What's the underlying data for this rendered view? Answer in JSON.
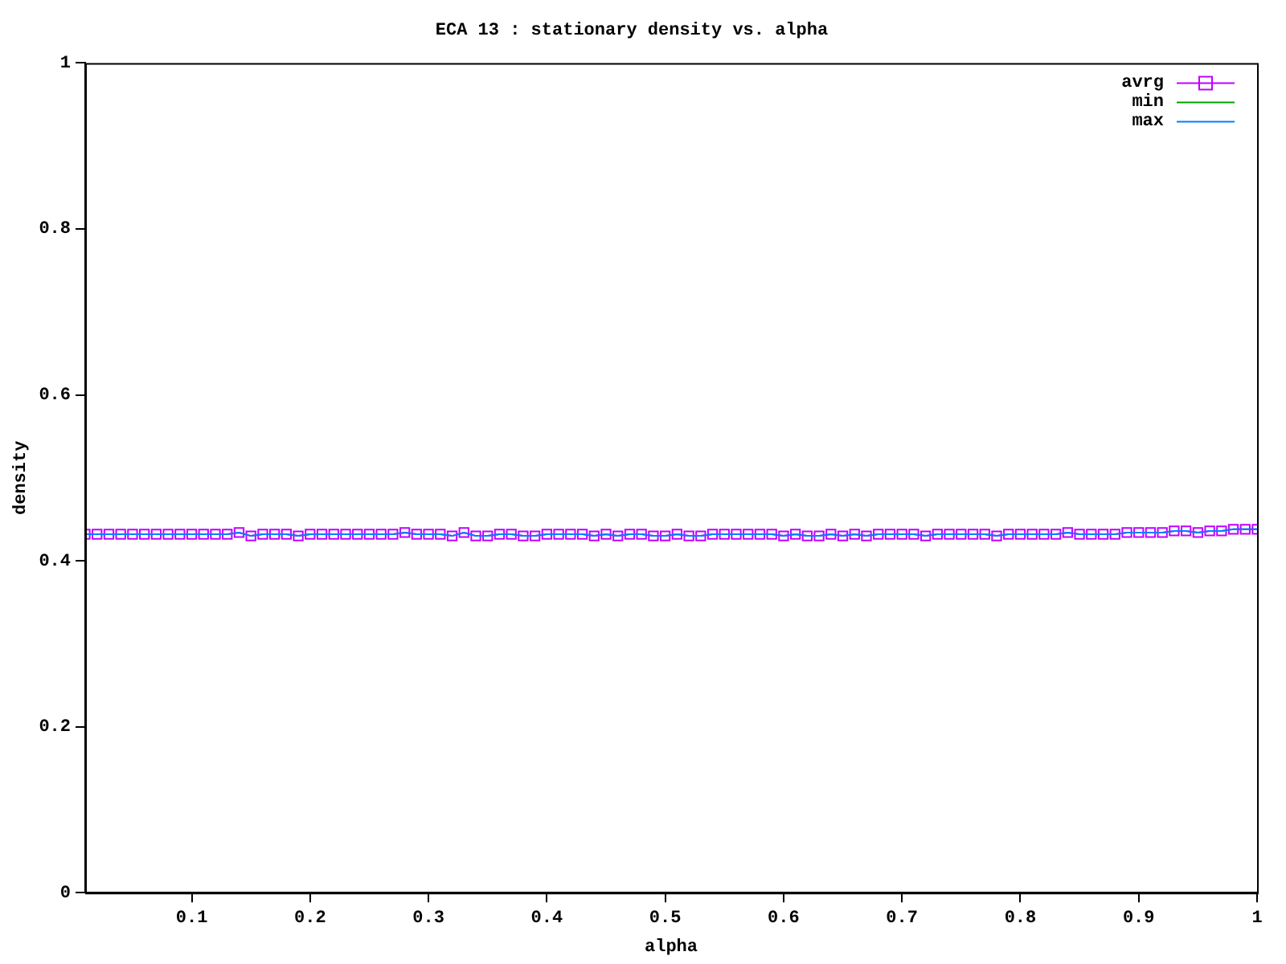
{
  "chart_data": {
    "type": "line",
    "title": "ECA 13 : stationary density vs. alpha",
    "xlabel": "alpha",
    "ylabel": "density",
    "x": [
      0.01,
      0.02,
      0.03,
      0.04,
      0.05,
      0.06,
      0.07,
      0.08,
      0.09,
      0.1,
      0.11,
      0.12,
      0.13,
      0.14,
      0.15,
      0.16,
      0.17,
      0.18,
      0.19,
      0.2,
      0.21,
      0.22,
      0.23,
      0.24,
      0.25,
      0.26,
      0.27,
      0.28,
      0.29,
      0.3,
      0.31,
      0.32,
      0.33,
      0.34,
      0.35,
      0.36,
      0.37,
      0.38,
      0.39,
      0.4,
      0.41,
      0.42,
      0.43,
      0.44,
      0.45,
      0.46,
      0.47,
      0.48,
      0.49,
      0.5,
      0.51,
      0.52,
      0.53,
      0.54,
      0.55,
      0.56,
      0.57,
      0.58,
      0.59,
      0.6,
      0.61,
      0.62,
      0.63,
      0.64,
      0.65,
      0.66,
      0.67,
      0.68,
      0.69,
      0.7,
      0.71,
      0.72,
      0.73,
      0.74,
      0.75,
      0.76,
      0.77,
      0.78,
      0.79,
      0.8,
      0.81,
      0.82,
      0.83,
      0.84,
      0.85,
      0.86,
      0.87,
      0.88,
      0.89,
      0.9,
      0.91,
      0.92,
      0.93,
      0.94,
      0.95,
      0.96,
      0.97,
      0.98,
      0.99,
      1
    ],
    "series": [
      {
        "name": "avrg",
        "color": "#c000ff",
        "marker": "square",
        "values": [
          0.432,
          0.432,
          0.432,
          0.432,
          0.432,
          0.432,
          0.432,
          0.432,
          0.432,
          0.432,
          0.432,
          0.432,
          0.432,
          0.434,
          0.43,
          0.432,
          0.432,
          0.432,
          0.43,
          0.432,
          0.432,
          0.432,
          0.432,
          0.432,
          0.432,
          0.432,
          0.432,
          0.434,
          0.432,
          0.432,
          0.432,
          0.43,
          0.434,
          0.43,
          0.43,
          0.432,
          0.432,
          0.43,
          0.43,
          0.432,
          0.432,
          0.432,
          0.432,
          0.43,
          0.432,
          0.43,
          0.432,
          0.432,
          0.43,
          0.43,
          0.432,
          0.43,
          0.43,
          0.432,
          0.432,
          0.432,
          0.432,
          0.432,
          0.432,
          0.43,
          0.432,
          0.43,
          0.43,
          0.432,
          0.43,
          0.432,
          0.43,
          0.432,
          0.432,
          0.432,
          0.432,
          0.43,
          0.432,
          0.432,
          0.432,
          0.432,
          0.432,
          0.43,
          0.432,
          0.432,
          0.432,
          0.432,
          0.432,
          0.434,
          0.432,
          0.432,
          0.432,
          0.432,
          0.434,
          0.434,
          0.434,
          0.434,
          0.436,
          0.436,
          0.434,
          0.436,
          0.436,
          0.438,
          0.438,
          0.438
        ]
      },
      {
        "name": "min",
        "color": "#00a000",
        "marker": "none",
        "values": [
          null,
          null,
          null,
          null,
          null,
          null,
          null,
          null,
          null,
          null,
          null,
          null,
          null,
          null,
          null,
          null,
          null,
          null,
          null,
          null,
          null,
          null,
          null,
          null,
          null,
          null,
          null,
          null,
          null,
          null,
          null,
          null,
          null,
          null,
          null,
          null,
          null,
          null,
          null,
          null,
          null,
          null,
          null,
          null,
          null,
          null,
          null,
          null,
          null,
          null,
          null,
          null,
          null,
          null,
          null,
          null,
          null,
          null,
          null,
          null,
          null,
          null,
          null,
          null,
          null,
          null,
          null,
          null,
          null,
          null,
          null,
          null,
          null,
          null,
          null,
          null,
          null,
          null,
          null,
          null,
          null,
          null,
          null,
          null,
          null,
          null,
          null,
          null,
          null,
          null,
          null,
          null,
          null,
          null,
          null,
          null,
          null,
          null,
          null,
          null
        ]
      },
      {
        "name": "max",
        "color": "#0080ff",
        "marker": "none",
        "values": [
          0.432,
          0.432,
          0.432,
          0.432,
          0.432,
          0.432,
          0.432,
          0.432,
          0.432,
          0.432,
          0.432,
          0.432,
          0.432,
          0.434,
          0.43,
          0.432,
          0.432,
          0.432,
          0.43,
          0.432,
          0.432,
          0.432,
          0.432,
          0.432,
          0.432,
          0.432,
          0.432,
          0.434,
          0.432,
          0.432,
          0.432,
          0.43,
          0.434,
          0.43,
          0.43,
          0.432,
          0.432,
          0.43,
          0.43,
          0.432,
          0.432,
          0.432,
          0.432,
          0.43,
          0.432,
          0.43,
          0.432,
          0.432,
          0.43,
          0.43,
          0.432,
          0.43,
          0.43,
          0.432,
          0.432,
          0.432,
          0.432,
          0.432,
          0.432,
          0.43,
          0.432,
          0.43,
          0.43,
          0.432,
          0.43,
          0.432,
          0.43,
          0.432,
          0.432,
          0.432,
          0.432,
          0.43,
          0.432,
          0.432,
          0.432,
          0.432,
          0.432,
          0.43,
          0.432,
          0.432,
          0.432,
          0.432,
          0.432,
          0.434,
          0.432,
          0.432,
          0.432,
          0.432,
          0.434,
          0.434,
          0.434,
          0.434,
          0.436,
          0.436,
          0.434,
          0.436,
          0.436,
          0.438,
          0.438,
          0.438
        ]
      }
    ],
    "xlim": [
      0.01,
      1
    ],
    "xticks": [
      0.1,
      0.2,
      0.3,
      0.4,
      0.5,
      0.6,
      0.7,
      0.8,
      0.9,
      1
    ],
    "ylim": [
      0,
      1
    ],
    "yticks": [
      0,
      0.2,
      0.4,
      0.6,
      0.8,
      1
    ],
    "grid": false,
    "legend": "top right"
  }
}
